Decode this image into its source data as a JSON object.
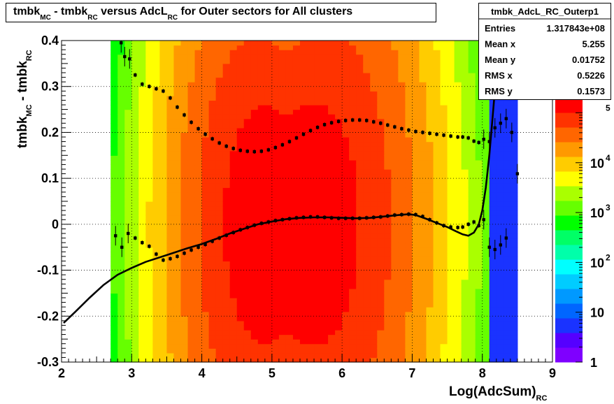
{
  "title": {
    "parts": [
      {
        "t": "tmbk",
        "sub": false
      },
      {
        "t": "MC",
        "sub": true
      },
      {
        "t": " - tmbk",
        "sub": false
      },
      {
        "t": "RC",
        "sub": true
      },
      {
        "t": " versus AdcL",
        "sub": false
      },
      {
        "t": "RC",
        "sub": true
      },
      {
        "t": " for Outer sectors for All clusters",
        "sub": false
      }
    ]
  },
  "stats": {
    "name": "tmbk_AdcL_RC_Outerp1",
    "rows": [
      {
        "label": "Entries",
        "value": "1.317843e+08"
      },
      {
        "label": "Mean x",
        "value": "5.255"
      },
      {
        "label": "Mean y",
        "value": "0.01752"
      },
      {
        "label": "RMS x",
        "value": "0.5226"
      },
      {
        "label": "RMS y",
        "value": "0.1573"
      }
    ]
  },
  "colors": {
    "palette": [
      "#7f00ff",
      "#5500ff",
      "#1a33ff",
      "#0066ff",
      "#0099ff",
      "#00ccff",
      "#00ffff",
      "#00ffaa",
      "#00ff66",
      "#00ff00",
      "#66ff00",
      "#aaff00",
      "#ffff00",
      "#ffcc00",
      "#ff9900",
      "#ff6600",
      "#ff3300",
      "#ff0000"
    ],
    "markers": "#000000",
    "fit_line": "#000000",
    "grid": "#000000"
  },
  "chart_data": {
    "type": "heatmap",
    "xlabel": "Log(AdcSum)",
    "xlabel_sub": "RC",
    "ylabel": "tmbk",
    "ylabel_sub1": "MC",
    "ylabel_mid": " - tmbk",
    "ylabel_sub2": "RC",
    "xlim": [
      2,
      9
    ],
    "ylim": [
      -0.3,
      0.4
    ],
    "x_ticks": [
      2,
      3,
      4,
      5,
      6,
      7,
      8,
      9
    ],
    "y_ticks": [
      -0.3,
      -0.2,
      -0.1,
      0,
      0.1,
      0.2,
      0.3,
      0.4
    ],
    "grid": true,
    "z_scale": "log",
    "z_ticks": [
      {
        "value": 1,
        "label": "1"
      },
      {
        "value": 10,
        "label": "10"
      },
      {
        "value": 100,
        "label": "10",
        "exp": "2"
      },
      {
        "value": 1000,
        "label": "10",
        "exp": "3"
      },
      {
        "value": 10000,
        "label": "10",
        "exp": "4"
      },
      {
        "value": 100000,
        "label": "",
        "exp": "5"
      }
    ],
    "z_max": 200000,
    "density": {
      "x_range": [
        2.7,
        8.5
      ],
      "center_x": 5.2,
      "center_y": 0.0,
      "sigma_x_left": 0.75,
      "sigma_x_right": 0.9,
      "sigma_y": 0.22,
      "peak": 200000
    },
    "series": [
      {
        "name": "upper profile",
        "points": [
          [
            2.85,
            0.395
          ],
          [
            2.9,
            0.365
          ],
          [
            2.97,
            0.36
          ],
          [
            3.05,
            0.325
          ],
          [
            3.15,
            0.305
          ],
          [
            3.25,
            0.3
          ],
          [
            3.35,
            0.295
          ],
          [
            3.45,
            0.29
          ],
          [
            3.55,
            0.275
          ],
          [
            3.65,
            0.255
          ],
          [
            3.75,
            0.238
          ],
          [
            3.85,
            0.222
          ],
          [
            3.95,
            0.208
          ],
          [
            4.05,
            0.196
          ],
          [
            4.15,
            0.186
          ],
          [
            4.25,
            0.177
          ],
          [
            4.35,
            0.17
          ],
          [
            4.45,
            0.165
          ],
          [
            4.55,
            0.161
          ],
          [
            4.65,
            0.159
          ],
          [
            4.75,
            0.158
          ],
          [
            4.85,
            0.159
          ],
          [
            4.95,
            0.162
          ],
          [
            5.05,
            0.167
          ],
          [
            5.15,
            0.173
          ],
          [
            5.25,
            0.18
          ],
          [
            5.35,
            0.188
          ],
          [
            5.45,
            0.196
          ],
          [
            5.55,
            0.204
          ],
          [
            5.65,
            0.211
          ],
          [
            5.75,
            0.217
          ],
          [
            5.85,
            0.221
          ],
          [
            5.95,
            0.224
          ],
          [
            6.05,
            0.226
          ],
          [
            6.15,
            0.227
          ],
          [
            6.25,
            0.227
          ],
          [
            6.35,
            0.226
          ],
          [
            6.45,
            0.223
          ],
          [
            6.55,
            0.22
          ],
          [
            6.65,
            0.216
          ],
          [
            6.75,
            0.212
          ],
          [
            6.85,
            0.208
          ],
          [
            6.95,
            0.205
          ],
          [
            7.05,
            0.202
          ],
          [
            7.15,
            0.2
          ],
          [
            7.25,
            0.198
          ],
          [
            7.35,
            0.196
          ],
          [
            7.45,
            0.194
          ],
          [
            7.55,
            0.192
          ],
          [
            7.65,
            0.19
          ],
          [
            7.72,
            0.19
          ],
          [
            7.8,
            0.188
          ],
          [
            7.88,
            0.181
          ],
          [
            7.95,
            0.178
          ],
          [
            8.02,
            0.185
          ],
          [
            8.1,
            0.18
          ],
          [
            8.18,
            0.21
          ],
          [
            8.26,
            0.22
          ],
          [
            8.34,
            0.23
          ],
          [
            8.42,
            0.2
          ],
          [
            8.5,
            0.11
          ]
        ]
      },
      {
        "name": "lower profile",
        "points": [
          [
            2.77,
            -0.025
          ],
          [
            2.86,
            -0.05
          ],
          [
            2.95,
            -0.02
          ],
          [
            3.05,
            -0.03
          ],
          [
            3.15,
            -0.04
          ],
          [
            3.25,
            -0.048
          ],
          [
            3.35,
            -0.065
          ],
          [
            3.45,
            -0.078
          ],
          [
            3.55,
            -0.075
          ],
          [
            3.65,
            -0.07
          ],
          [
            3.75,
            -0.063
          ],
          [
            3.85,
            -0.056
          ],
          [
            3.95,
            -0.05
          ],
          [
            4.05,
            -0.044
          ],
          [
            4.15,
            -0.037
          ],
          [
            4.25,
            -0.03
          ],
          [
            4.35,
            -0.024
          ],
          [
            4.45,
            -0.018
          ],
          [
            4.55,
            -0.012
          ],
          [
            4.65,
            -0.007
          ],
          [
            4.75,
            -0.002
          ],
          [
            4.85,
            0.002
          ],
          [
            4.95,
            0.005
          ],
          [
            5.05,
            0.008
          ],
          [
            5.15,
            0.01
          ],
          [
            5.25,
            0.012
          ],
          [
            5.35,
            0.014
          ],
          [
            5.45,
            0.015
          ],
          [
            5.55,
            0.016
          ],
          [
            5.65,
            0.016
          ],
          [
            5.75,
            0.015
          ],
          [
            5.85,
            0.014
          ],
          [
            5.95,
            0.013
          ],
          [
            6.05,
            0.013
          ],
          [
            6.15,
            0.013
          ],
          [
            6.25,
            0.013
          ],
          [
            6.35,
            0.014
          ],
          [
            6.45,
            0.015
          ],
          [
            6.55,
            0.016
          ],
          [
            6.65,
            0.018
          ],
          [
            6.75,
            0.02
          ],
          [
            6.85,
            0.021
          ],
          [
            6.95,
            0.022
          ],
          [
            7.05,
            0.021
          ],
          [
            7.15,
            0.017
          ],
          [
            7.25,
            0.01
          ],
          [
            7.35,
            0.003
          ],
          [
            7.45,
            -0.003
          ],
          [
            7.55,
            -0.006
          ],
          [
            7.65,
            -0.007
          ],
          [
            7.72,
            -0.006
          ],
          [
            7.8,
            0.0
          ],
          [
            7.88,
            0.005
          ],
          [
            7.95,
            -0.003
          ],
          [
            8.02,
            0.01
          ],
          [
            8.1,
            -0.05
          ],
          [
            8.18,
            -0.055
          ],
          [
            8.26,
            -0.045
          ],
          [
            8.34,
            -0.03
          ]
        ]
      }
    ],
    "fit": {
      "name": "fit",
      "points": [
        [
          2.03,
          -0.215
        ],
        [
          2.2,
          -0.19
        ],
        [
          2.4,
          -0.16
        ],
        [
          2.6,
          -0.132
        ],
        [
          2.8,
          -0.11
        ],
        [
          3.0,
          -0.095
        ],
        [
          3.2,
          -0.082
        ],
        [
          3.4,
          -0.072
        ],
        [
          3.6,
          -0.062
        ],
        [
          3.8,
          -0.052
        ],
        [
          4.0,
          -0.043
        ],
        [
          4.2,
          -0.032
        ],
        [
          4.4,
          -0.02
        ],
        [
          4.6,
          -0.01
        ],
        [
          4.8,
          0.0
        ],
        [
          5.0,
          0.006
        ],
        [
          5.2,
          0.011
        ],
        [
          5.4,
          0.014
        ],
        [
          5.6,
          0.015
        ],
        [
          5.8,
          0.015
        ],
        [
          6.0,
          0.014
        ],
        [
          6.2,
          0.013
        ],
        [
          6.4,
          0.014
        ],
        [
          6.6,
          0.017
        ],
        [
          6.8,
          0.02
        ],
        [
          6.95,
          0.022
        ],
        [
          7.05,
          0.02
        ],
        [
          7.2,
          0.012
        ],
        [
          7.35,
          0.003
        ],
        [
          7.5,
          -0.006
        ],
        [
          7.62,
          -0.015
        ],
        [
          7.72,
          -0.022
        ],
        [
          7.8,
          -0.025
        ],
        [
          7.88,
          -0.018
        ],
        [
          7.95,
          0.0
        ],
        [
          8.0,
          0.03
        ],
        [
          8.05,
          0.08
        ],
        [
          8.1,
          0.15
        ],
        [
          8.15,
          0.24
        ],
        [
          8.2,
          0.33
        ],
        [
          8.25,
          0.4
        ]
      ]
    }
  }
}
